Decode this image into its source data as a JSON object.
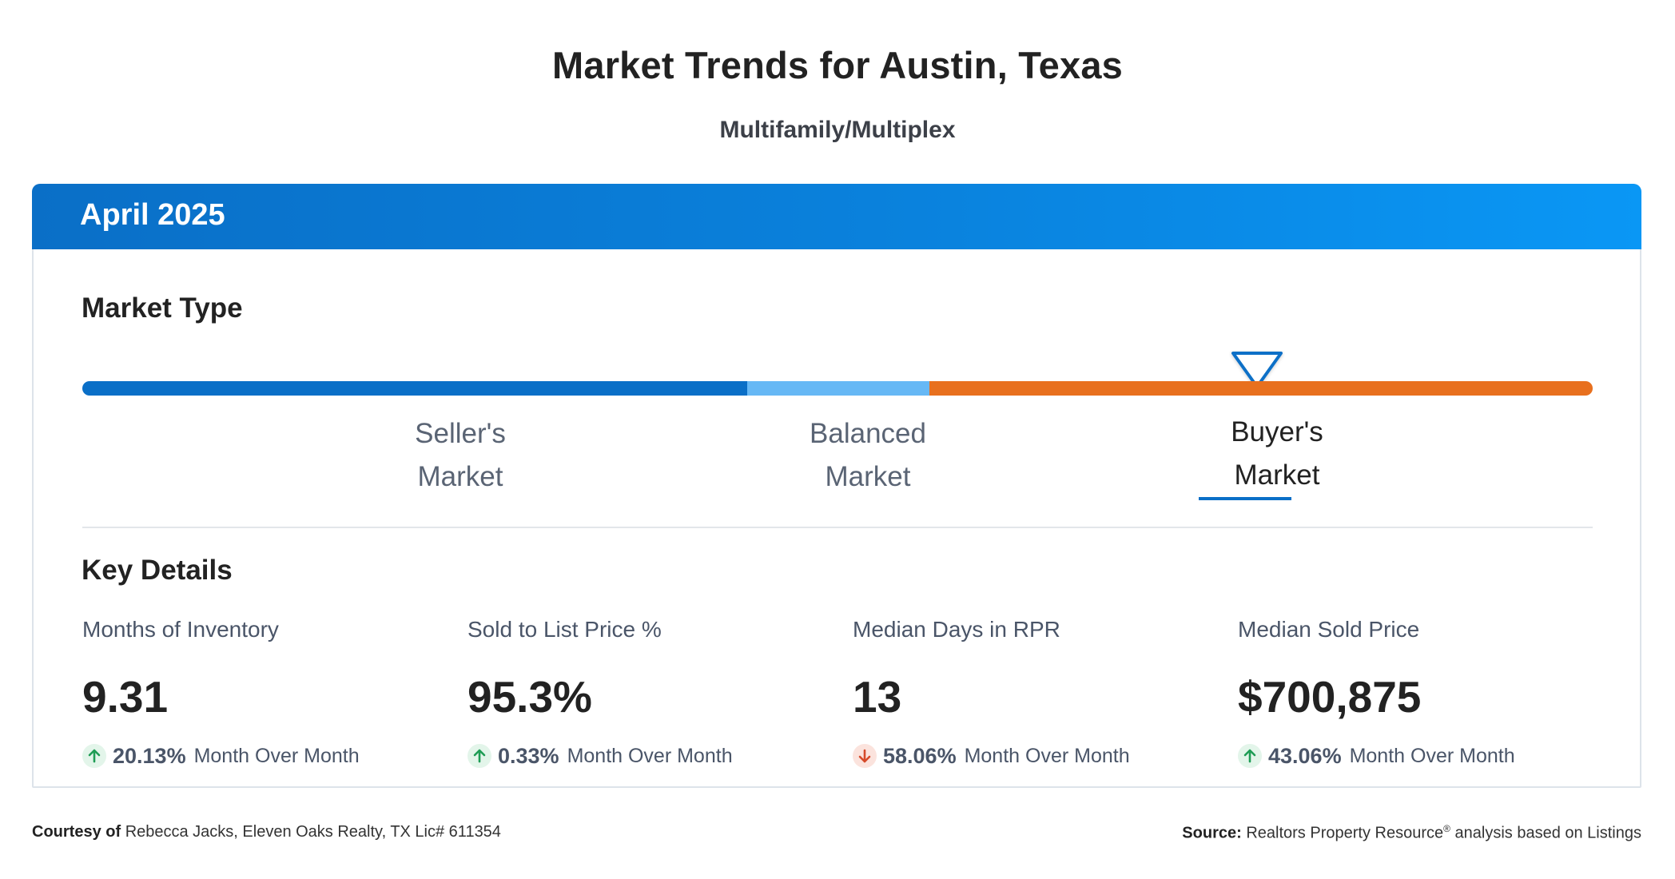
{
  "page": {
    "title": "Market Trends for Austin, Texas",
    "subtitle": "Multifamily/Multiplex"
  },
  "card": {
    "header_title": "April 2025",
    "market_type_title": "Market Type",
    "market_type": {
      "segments": [
        {
          "name": "seller",
          "color": "#0a6fc7"
        },
        {
          "name": "balanced",
          "color": "#66b8f5"
        },
        {
          "name": "buyer",
          "color": "#e8701e"
        }
      ],
      "labels": [
        {
          "line1": "Seller's",
          "line2": "Market"
        },
        {
          "line1": "Balanced",
          "line2": "Market"
        },
        {
          "line1": "Buyer's",
          "line2": "Market"
        }
      ],
      "active": "Buyer's Market",
      "marker_icon": "triangle-down-icon"
    },
    "key_details_title": "Key Details",
    "metrics": [
      {
        "label": "Months of Inventory",
        "value": "9.31",
        "change": "20.13%",
        "direction": "up",
        "change_text": "Month Over Month"
      },
      {
        "label": "Sold to List Price %",
        "value": "95.3%",
        "change": "0.33%",
        "direction": "up",
        "change_text": "Month Over Month"
      },
      {
        "label": "Median Days in RPR",
        "value": "13",
        "change": "58.06%",
        "direction": "down",
        "change_text": "Month Over Month"
      },
      {
        "label": "Median Sold Price",
        "value": "$700,875",
        "change": "43.06%",
        "direction": "up",
        "change_text": "Month Over Month"
      }
    ],
    "colors": {
      "up_arrow": "#1f9d55",
      "up_badge": "#e3f5ea",
      "down_arrow": "#d64a2a",
      "down_badge": "#fbe3dd",
      "accent": "#0a6fc7"
    }
  },
  "footer": {
    "courtesy_label": "Courtesy of",
    "courtesy_text": "Rebecca Jacks, Eleven Oaks Realty, TX Lic# 611354",
    "source_label": "Source:",
    "source_name": "Realtors Property Resource",
    "source_mark": "®",
    "source_text": "analysis based on Listings"
  }
}
